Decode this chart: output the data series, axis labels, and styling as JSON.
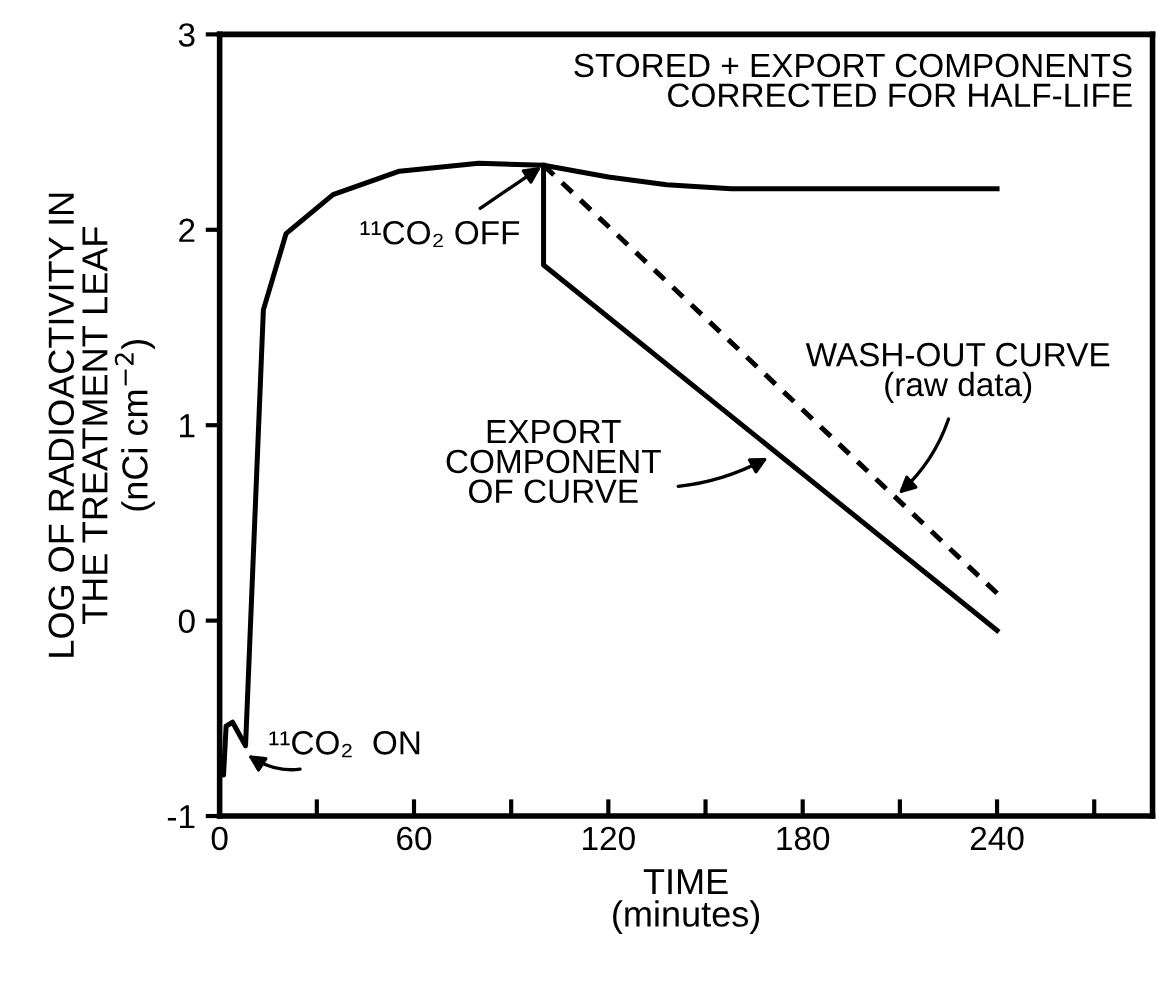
{
  "chart_data": {
    "type": "line",
    "xlabel": "TIME\n(minutes)",
    "ylabel": "LOG OF RADIOACTIVITY IN\nTHE TREATMENT LEAF\n(nCi cm$^{−2}$)",
    "series": [
      {
        "color": "#000000",
        "line_style": "solid",
        "x": [
          0,
          1.2,
          2,
          4,
          8,
          13.5,
          20.5,
          35,
          55.5,
          80,
          100,
          120,
          138,
          158,
          200,
          240
        ],
        "values": [
          -0.75,
          -0.79,
          -0.54,
          -0.52,
          -0.64,
          1.59,
          1.98,
          2.18,
          2.3,
          2.34,
          2.33,
          2.27,
          2.23,
          2.21,
          2.21,
          2.21
        ]
      },
      {
        "color": "#000000",
        "line_style": "solid",
        "x": [
          100,
          100,
          240
        ],
        "values": [
          2.33,
          1.82,
          -0.05
        ]
      },
      {
        "color": "#000000",
        "line_style": "dashed",
        "x": [
          100,
          240
        ],
        "values": [
          2.33,
          0.14
        ]
      }
    ],
    "annotations": [
      "STORED + EXPORT COMPONENTS\nCORRECTED FOR HALF-LIFE",
      {
        "text": "¹¹CO₂ OFF",
        "x": 100,
        "y": 2.33
      },
      {
        "text": "EXPORT\nCOMPONENT\nOF CURVE",
        "x": 170,
        "y": 0.84
      },
      {
        "text": "WASH-OUT CURVE\n(raw data)",
        "x": 209,
        "y": 0.64
      },
      {
        "text": "¹¹CO₂  ON",
        "x": 8,
        "y": -0.68
      }
    ],
    "xlim": [
      0,
      288
    ],
    "ylim": [
      -1,
      3
    ],
    "xticks": [
      0,
      {
        "value": 30,
        "label": null
      },
      60,
      {
        "value": 90,
        "label": null
      },
      120,
      {
        "value": 150,
        "label": null
      },
      180,
      {
        "value": 210,
        "label": null
      },
      240,
      {
        "value": 270,
        "label": null
      }
    ],
    "yticks": [
      -1,
      0,
      1,
      2,
      3
    ],
    "grid": false,
    "legend": false,
    "marker": "none"
  }
}
